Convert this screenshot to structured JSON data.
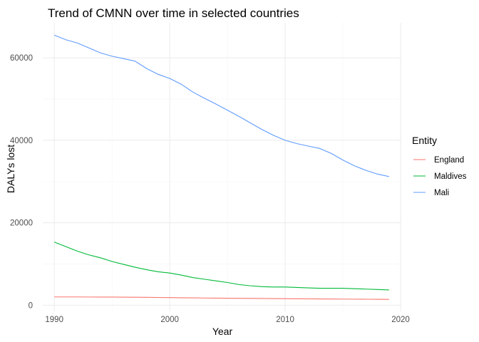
{
  "chart_data": {
    "type": "line",
    "title": "Trend of CMNN over time in selected countries",
    "xlabel": "Year",
    "ylabel": "DALYs lost",
    "xlim": [
      1989,
      2020
    ],
    "ylim": [
      -1500,
      68500
    ],
    "x_ticks": [
      1990,
      2000,
      2010,
      2020
    ],
    "y_ticks": [
      0,
      20000,
      40000,
      60000
    ],
    "y_tick_labels": [
      "0",
      "20000",
      "40000",
      "60000"
    ],
    "grid": true,
    "legend": {
      "title": "Entity",
      "position": "right"
    },
    "x": [
      1990,
      1991,
      1992,
      1993,
      1994,
      1995,
      1996,
      1997,
      1998,
      1999,
      2000,
      2001,
      2002,
      2003,
      2004,
      2005,
      2006,
      2007,
      2008,
      2009,
      2010,
      2011,
      2012,
      2013,
      2014,
      2015,
      2016,
      2017,
      2018,
      2019
    ],
    "series": [
      {
        "name": "England",
        "color": "#F8766D",
        "values": [
          2000,
          2000,
          2000,
          1980,
          1970,
          1960,
          1950,
          1930,
          1900,
          1870,
          1840,
          1800,
          1770,
          1740,
          1710,
          1690,
          1670,
          1650,
          1620,
          1600,
          1580,
          1560,
          1540,
          1520,
          1500,
          1480,
          1460,
          1440,
          1420,
          1400
        ]
      },
      {
        "name": "Maldives",
        "color": "#00BA38",
        "values": [
          15300,
          14200,
          13100,
          12200,
          11500,
          10600,
          9900,
          9200,
          8600,
          8100,
          7800,
          7300,
          6700,
          6300,
          5900,
          5500,
          5000,
          4700,
          4500,
          4400,
          4400,
          4300,
          4200,
          4100,
          4100,
          4100,
          4000,
          3900,
          3800,
          3700
        ]
      },
      {
        "name": "Mali",
        "color": "#619CFF",
        "values": [
          65500,
          64400,
          63600,
          62400,
          61200,
          60400,
          59800,
          59200,
          57400,
          56000,
          55000,
          53600,
          51700,
          50200,
          48800,
          47300,
          45800,
          44200,
          42600,
          41200,
          40000,
          39200,
          38600,
          38000,
          36800,
          35200,
          33800,
          32700,
          31800,
          31200
        ]
      }
    ]
  }
}
